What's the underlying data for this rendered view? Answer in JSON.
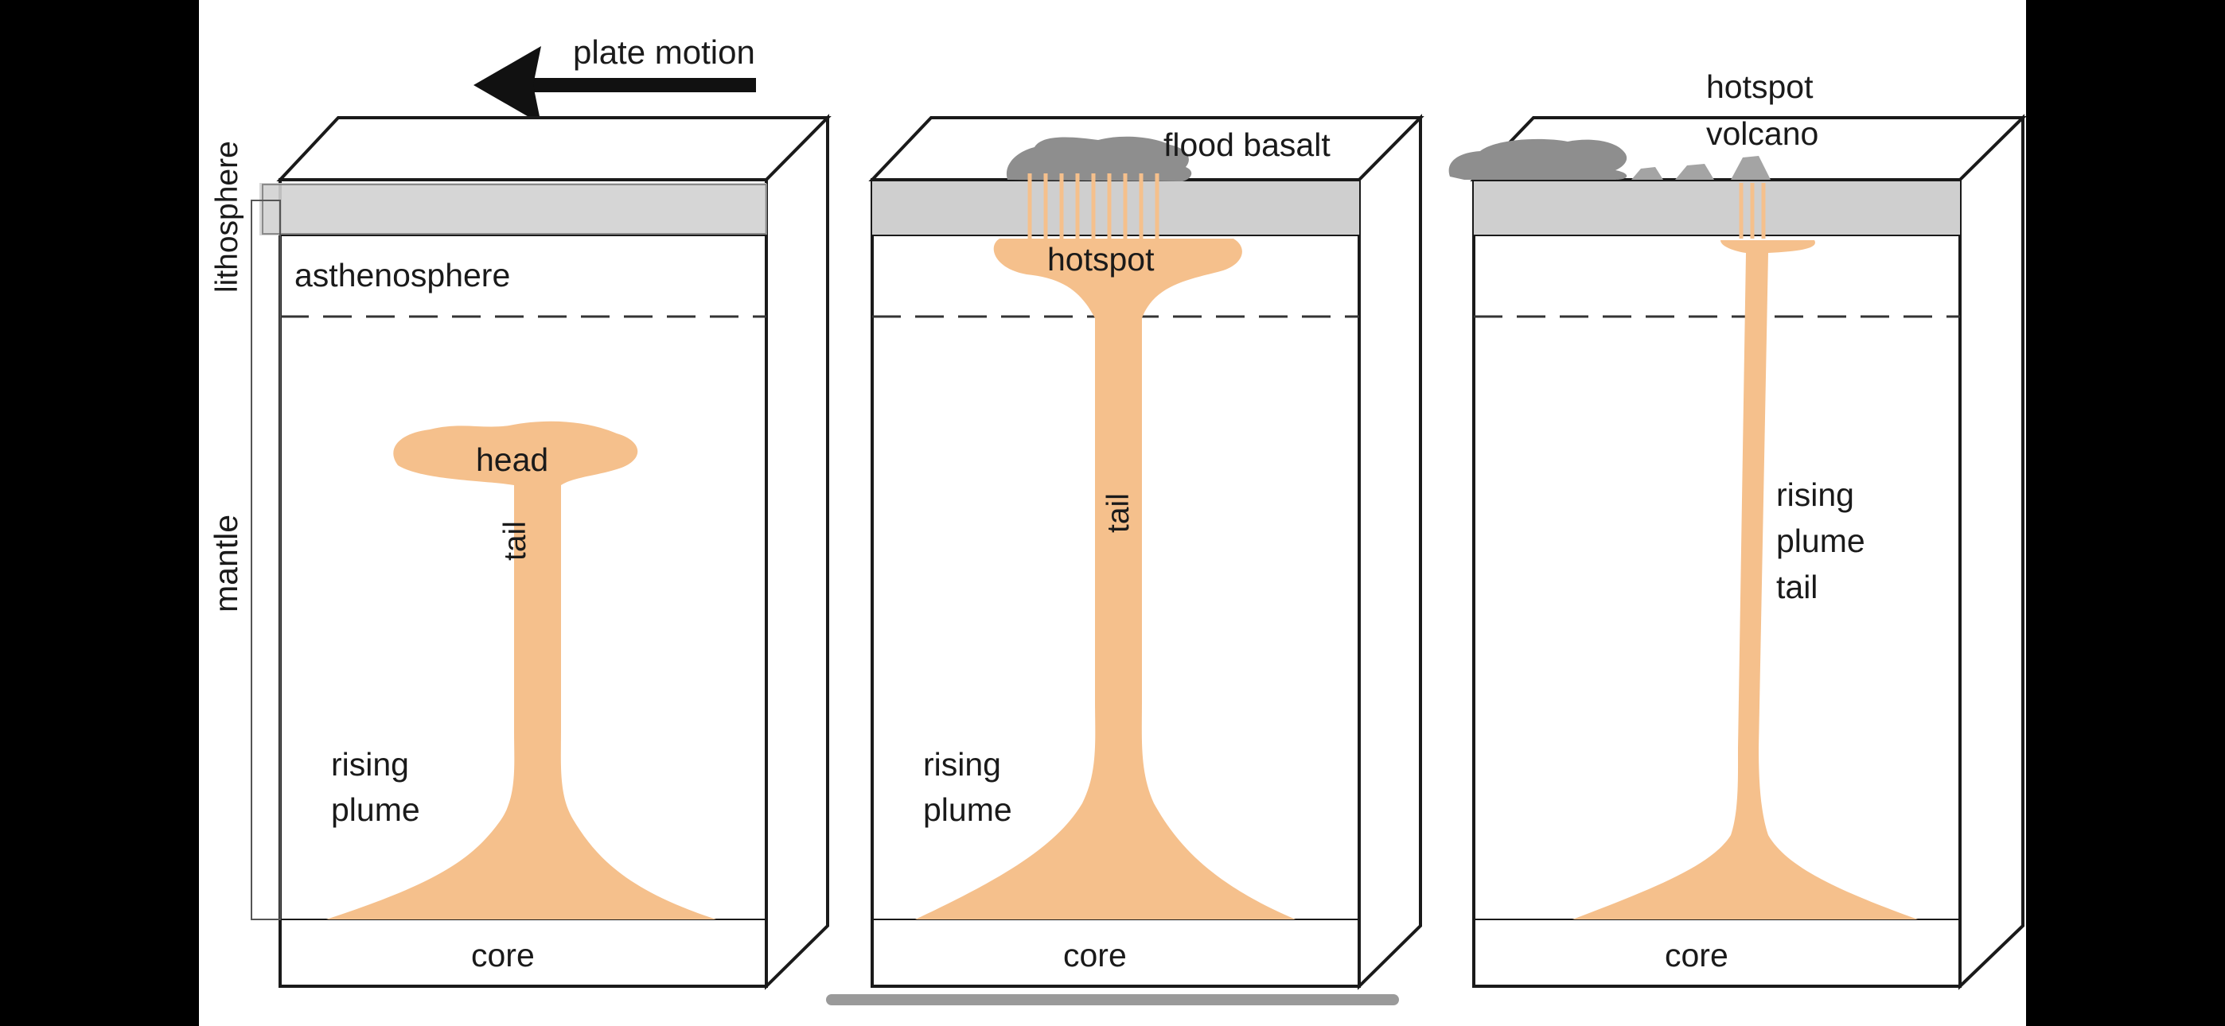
{
  "labels": {
    "plate_motion": "plate motion",
    "lithosphere": "lithosphere",
    "asthenosphere": "asthenosphere",
    "mantle": "mantle",
    "head": "head",
    "tail_1": "tail",
    "tail_2": "tail",
    "rising_plume_1": [
      "rising",
      "plume"
    ],
    "rising_plume_2": [
      "rising",
      "plume"
    ],
    "rising_plume_tail_3": [
      "rising",
      "plume",
      "tail"
    ],
    "flood_basalt": "flood basalt",
    "hotspot": "hotspot",
    "hotspot_volcano": [
      "hotspot",
      "volcano"
    ],
    "core_1": "core",
    "core_2": "core",
    "core_3": "core"
  },
  "colors": {
    "plume": "#f5c08c",
    "lithosphere": "#d2d2d2",
    "basalt": "#8e8e8e",
    "volcano": "#a4a4a4",
    "outline": "#1a1a1a",
    "background": "#ffffff",
    "letterbox": "#000000"
  },
  "icons": {
    "plate_motion_arrow": "left-arrow-icon"
  }
}
